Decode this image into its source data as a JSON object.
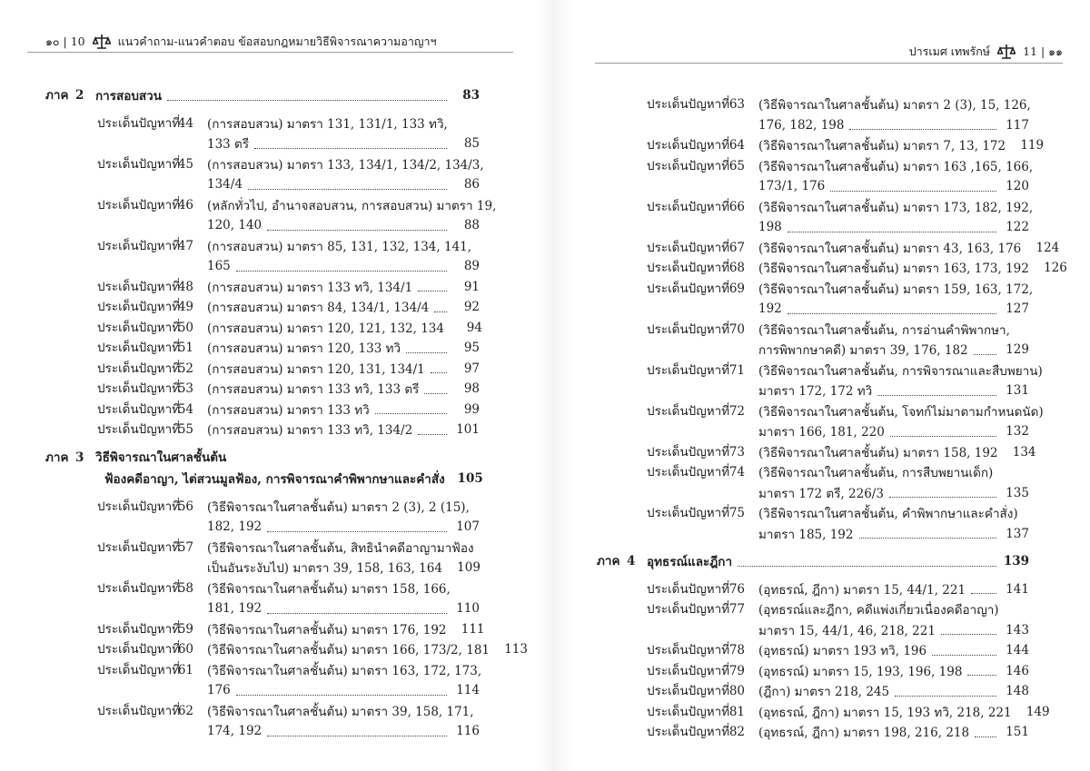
{
  "left_page": {
    "header": {
      "page_number": "๑๐ | 10",
      "title": "แนวคำถาม-แนวคำตอบ ข้อสอบกฎหมายวิธีพิจารณาความอาญาฯ"
    },
    "entries": [
      {
        "part": 2,
        "title": "การสอบสวน",
        "page": 83
      },
      {
        "issue": 44,
        "lines": [
          "(การสอบสวน) มาตรา 131, 131/1, 133 ทวิ,",
          "133 ตรี"
        ],
        "page": 85
      },
      {
        "issue": 45,
        "lines": [
          "(การสอบสวน) มาตรา 133, 134/1, 134/2, 134/3,",
          "134/4"
        ],
        "page": 86
      },
      {
        "issue": 46,
        "lines": [
          "(หลักทั่วไป, อำนาจสอบสวน, การสอบสวน) มาตรา 19,",
          "120, 140"
        ],
        "page": 88
      },
      {
        "issue": 47,
        "lines": [
          "(การสอบสวน) มาตรา 85, 131, 132, 134, 141,",
          "165"
        ],
        "page": 89
      },
      {
        "issue": 48,
        "lines": [
          "(การสอบสวน) มาตรา 133 ทวิ, 134/1"
        ],
        "page": 91
      },
      {
        "issue": 49,
        "lines": [
          "(การสอบสวน) มาตรา 84, 134/1, 134/4"
        ],
        "page": 92
      },
      {
        "issue": 50,
        "lines": [
          "(การสอบสวน) มาตรา 120, 121, 132, 134"
        ],
        "page": 94
      },
      {
        "issue": 51,
        "lines": [
          "(การสอบสวน) มาตรา 120, 133 ทวิ"
        ],
        "page": 95
      },
      {
        "issue": 52,
        "lines": [
          "(การสอบสวน) มาตรา 120, 131, 134/1"
        ],
        "page": 97
      },
      {
        "issue": 53,
        "lines": [
          "(การสอบสวน) มาตรา 133 ทวิ, 133 ตรี"
        ],
        "page": 98
      },
      {
        "issue": 54,
        "lines": [
          "(การสอบสวน) มาตรา 133 ทวิ"
        ],
        "page": 99
      },
      {
        "issue": 55,
        "lines": [
          "(การสอบสวน) มาตรา 133 ทวิ, 134/2"
        ],
        "page": 101
      },
      {
        "part": 3,
        "title": "วิธีพิจารณาในศาลชั้นต้น",
        "subtitle": "ฟ้องคดีอาญา, ไต่สวนมูลฟ้อง, การพิจารณาคำพิพากษาและคำสั่ง",
        "page": 105
      },
      {
        "issue": 56,
        "lines": [
          "(วิธีพิจารณาในศาลชั้นต้น) มาตรา 2 (3), 2 (15),",
          "182, 192"
        ],
        "page": 107
      },
      {
        "issue": 57,
        "lines": [
          "(วิธีพิจารณาในศาลชั้นต้น, สิทธินำคดีอาญามาฟ้อง",
          "เป็นอันระงับไป) มาตรา 39, 158, 163, 164"
        ],
        "page": 109
      },
      {
        "issue": 58,
        "lines": [
          "(วิธีพิจารณาในศาลชั้นต้น) มาตรา 158, 166,",
          "181, 192"
        ],
        "page": 110
      },
      {
        "issue": 59,
        "lines": [
          "(วิธีพิจารณาในศาลชั้นต้น) มาตรา 176, 192"
        ],
        "page": 111
      },
      {
        "issue": 60,
        "lines": [
          "(วิธีพิจารณาในศาลชั้นต้น) มาตรา 166, 173/2, 181"
        ],
        "page": 113
      },
      {
        "issue": 61,
        "lines": [
          "(วิธีพิจารณาในศาลชั้นต้น) มาตรา 163, 172, 173,",
          "176"
        ],
        "page": 114
      },
      {
        "issue": 62,
        "lines": [
          "(วิธีพิจารณาในศาลชั้นต้น) มาตรา 39, 158, 171,",
          "174, 192"
        ],
        "page": 116
      }
    ]
  },
  "right_page": {
    "header": {
      "author": "ปารเมศ เทพรักษ์",
      "page_number": "11 | ๑๑"
    },
    "entries": [
      {
        "issue": 63,
        "lines": [
          "(วิธีพิจารณาในศาลชั้นต้น) มาตรา 2 (3), 15, 126,",
          "176, 182, 198"
        ],
        "page": 117
      },
      {
        "issue": 64,
        "lines": [
          "(วิธีพิจารณาในศาลชั้นต้น) มาตรา 7, 13, 172"
        ],
        "page": 119
      },
      {
        "issue": 65,
        "lines": [
          "(วิธีพิจารณาในศาลชั้นต้น) มาตรา 163 ,165, 166,",
          "173/1, 176"
        ],
        "page": 120
      },
      {
        "issue": 66,
        "lines": [
          "(วิธีพิจารณาในศาลชั้นต้น) มาตรา 173, 182, 192,",
          "198"
        ],
        "page": 122
      },
      {
        "issue": 67,
        "lines": [
          "(วิธีพิจารณาในศาลชั้นต้น) มาตรา 43, 163, 176"
        ],
        "page": 124
      },
      {
        "issue": 68,
        "lines": [
          "(วิธีพิจารณาในศาลชั้นต้น) มาตรา 163, 173, 192"
        ],
        "page": 126
      },
      {
        "issue": 69,
        "lines": [
          "(วิธีพิจารณาในศาลชั้นต้น) มาตรา 159, 163, 172,",
          "192"
        ],
        "page": 127
      },
      {
        "issue": 70,
        "lines": [
          "(วิธีพิจารณาในศาลชั้นต้น, การอ่านคำพิพากษา,",
          "การพิพากษาคดี) มาตรา 39, 176, 182"
        ],
        "page": 129
      },
      {
        "issue": 71,
        "lines": [
          "(วิธีพิจารณาในศาลชั้นต้น, การพิจารณาและสืบพยาน)",
          "มาตรา 172, 172 ทวิ"
        ],
        "page": 131
      },
      {
        "issue": 72,
        "lines": [
          "(วิธีพิจารณาในศาลชั้นต้น, โจทก์ไม่มาตามกำหนดนัด)",
          "มาตรา 166, 181, 220"
        ],
        "page": 132
      },
      {
        "issue": 73,
        "lines": [
          "(วิธีพิจารณาในศาลชั้นต้น) มาตรา 158, 192"
        ],
        "page": 134
      },
      {
        "issue": 74,
        "lines": [
          "(วิธีพิจารณาในศาลชั้นต้น, การสืบพยานเด็ก)",
          "มาตรา 172 ตรี, 226/3"
        ],
        "page": 135
      },
      {
        "issue": 75,
        "lines": [
          "(วิธีพิจารณาในศาลชั้นต้น, คำพิพากษาและคำสั่ง)",
          "มาตรา 185, 192"
        ],
        "page": 137
      },
      {
        "part": 4,
        "title": "อุทธรณ์และฎีกา",
        "page": 139
      },
      {
        "issue": 76,
        "lines": [
          "(อุทธรณ์, ฎีกา) มาตรา 15, 44/1, 221"
        ],
        "page": 141
      },
      {
        "issue": 77,
        "lines": [
          "(อุทธรณ์และฎีกา, คดีแพ่งเกี่ยวเนื่องคดีอาญา)",
          "มาตรา 15, 44/1, 46, 218, 221"
        ],
        "page": 143
      },
      {
        "issue": 78,
        "lines": [
          "(อุทธรณ์) มาตรา 193 ทวิ, 196"
        ],
        "page": 144
      },
      {
        "issue": 79,
        "lines": [
          "(อุทธรณ์) มาตรา 15, 193, 196, 198"
        ],
        "page": 146
      },
      {
        "issue": 80,
        "lines": [
          "(ฎีกา) มาตรา 218, 245"
        ],
        "page": 148
      },
      {
        "issue": 81,
        "lines": [
          "(อุทธรณ์, ฎีกา) มาตรา 15, 193 ทวิ, 218, 221"
        ],
        "page": 149
      },
      {
        "issue": 82,
        "lines": [
          "(อุทธรณ์, ฎีกา) มาตรา 198, 216, 218"
        ],
        "page": 151
      }
    ]
  },
  "part_label": "ภาค",
  "issue_label": "ประเด็นปัญหาที่"
}
